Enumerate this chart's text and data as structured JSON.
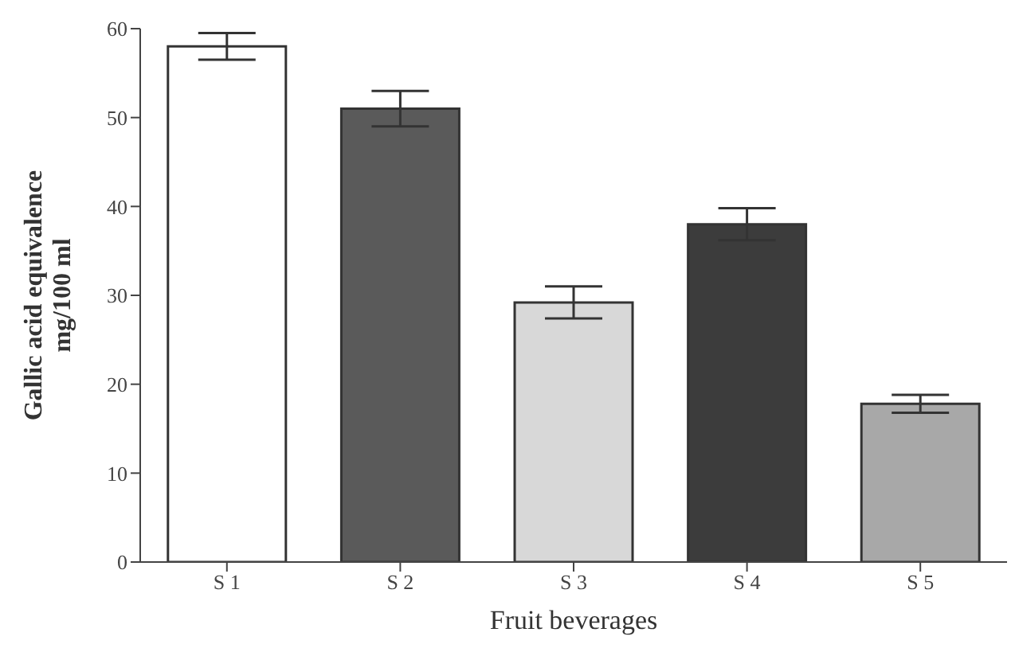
{
  "chart_data": {
    "type": "bar",
    "xlabel": "Fruit beverages",
    "ylabel": "Gallic acid equivalence\nmg/100 ml",
    "categories": [
      "S 1",
      "S 2",
      "S 3",
      "S 4",
      "S 5"
    ],
    "values": [
      58,
      51,
      29.2,
      38,
      17.8
    ],
    "errors": [
      1.5,
      2,
      1.8,
      1.8,
      1
    ],
    "colors": [
      "#ffffff",
      "#5a5a5a",
      "#d8d8d8",
      "#3c3c3c",
      "#a8a8a8"
    ],
    "ylim": [
      0,
      60
    ],
    "yticks": [
      0,
      10,
      20,
      30,
      40,
      50,
      60
    ],
    "grid": false,
    "legend": false
  }
}
